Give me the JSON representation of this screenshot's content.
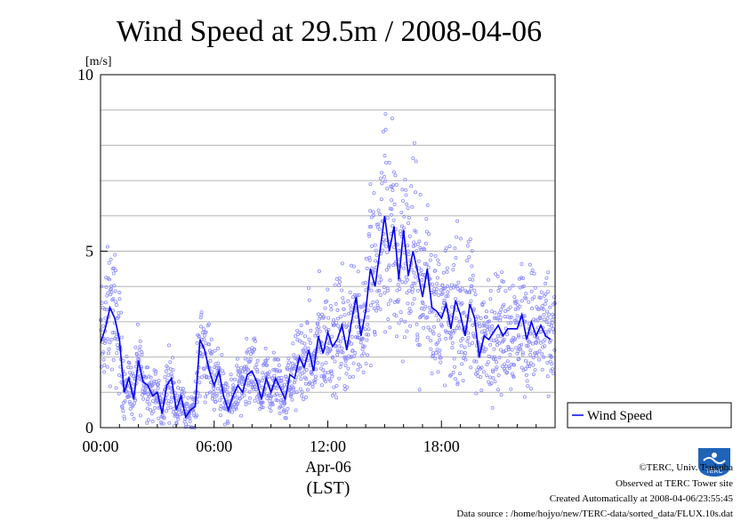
{
  "page": {
    "credits": [
      "©TERC, Univ. Tsukuba",
      "Observed at TERC Tower site",
      "Created Automatically at 2008-04-06/23:55:45",
      "Data source : /home/hojyo/new/TERC-data/sorted_data/FLUX.10s.dat"
    ],
    "logo_text": "TERC"
  },
  "chart_data": {
    "type": "line",
    "title": "Wind Speed at 29.5m / 2008-04-06",
    "ylabel": "[m/s]",
    "xlabel": "Apr-06",
    "xlabel2": "(LST)",
    "x_range": [
      0,
      24
    ],
    "ylim": [
      0,
      10
    ],
    "x_ticks": [
      {
        "value": 0,
        "label": "00:00"
      },
      {
        "value": 6,
        "label": "06:00"
      },
      {
        "value": 12,
        "label": "12:00"
      },
      {
        "value": 18,
        "label": "18:00"
      }
    ],
    "y_ticks": [
      {
        "value": 0,
        "label": "0"
      },
      {
        "value": 5,
        "label": "5"
      },
      {
        "value": 10,
        "label": "10"
      }
    ],
    "grid": true,
    "legend": {
      "position": "right",
      "entries": [
        "Wind Speed"
      ]
    },
    "series": [
      {
        "name": "Wind Speed",
        "color": "#0000ee",
        "scatter_color": "#8c8cff",
        "x": [
          0,
          0.25,
          0.5,
          0.75,
          1,
          1.25,
          1.5,
          1.75,
          2,
          2.25,
          2.5,
          2.75,
          3,
          3.25,
          3.5,
          3.75,
          4,
          4.25,
          4.5,
          4.75,
          5,
          5.25,
          5.5,
          5.75,
          6,
          6.25,
          6.5,
          6.75,
          7,
          7.25,
          7.5,
          7.75,
          8,
          8.25,
          8.5,
          8.75,
          9,
          9.25,
          9.5,
          9.75,
          10,
          10.25,
          10.5,
          10.75,
          11,
          11.25,
          11.5,
          11.75,
          12,
          12.25,
          12.5,
          12.75,
          13,
          13.25,
          13.5,
          13.75,
          14,
          14.25,
          14.5,
          14.75,
          15,
          15.25,
          15.5,
          15.75,
          16,
          16.25,
          16.5,
          16.75,
          17,
          17.25,
          17.5,
          17.75,
          18,
          18.25,
          18.5,
          18.75,
          19,
          19.25,
          19.5,
          19.75,
          20,
          20.25,
          20.5,
          20.75,
          21,
          21.25,
          21.5,
          21.75,
          22,
          22.25,
          22.5,
          22.75,
          23,
          23.25,
          23.5,
          23.75
        ],
        "values": [
          2.4,
          2.8,
          3.4,
          3.1,
          2.5,
          1.0,
          1.4,
          0.8,
          1.9,
          1.3,
          1.2,
          0.9,
          1.0,
          0.4,
          1.2,
          1.4,
          0.5,
          0.9,
          0.3,
          0.5,
          0.6,
          2.5,
          2.2,
          1.6,
          1.2,
          1.6,
          0.9,
          0.5,
          0.9,
          1.2,
          1.0,
          1.5,
          1.6,
          1.3,
          0.8,
          1.4,
          1.0,
          1.4,
          1.1,
          0.8,
          1.5,
          1.4,
          2.0,
          1.7,
          2.2,
          1.6,
          2.6,
          2.1,
          2.7,
          2.3,
          2.5,
          2.9,
          2.2,
          3.0,
          3.7,
          2.6,
          3.3,
          4.5,
          4.0,
          5.0,
          6.0,
          5.0,
          5.7,
          4.2,
          5.6,
          4.3,
          5.0,
          4.4,
          3.7,
          4.5,
          3.4,
          3.3,
          3.1,
          3.5,
          2.8,
          3.6,
          3.2,
          2.6,
          3.5,
          3.1,
          2.0,
          2.6,
          2.5,
          2.7,
          2.9,
          2.6,
          2.8,
          2.8,
          2.8,
          3.2,
          2.5,
          3.0,
          2.6,
          2.9,
          2.6,
          2.5
        ]
      }
    ]
  }
}
